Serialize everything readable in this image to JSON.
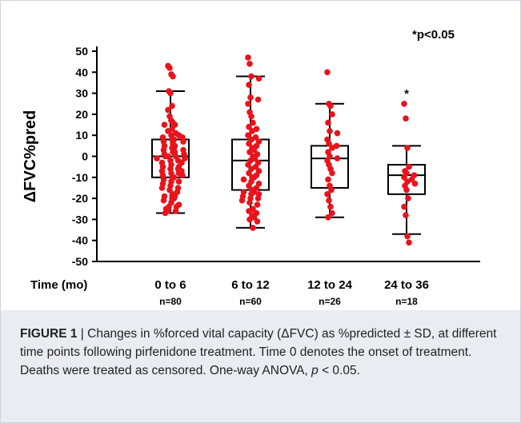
{
  "chart_data": {
    "type": "box",
    "ylabel": "ΔFVC%pred",
    "x_axis_title": "Time (mo)",
    "annotation": "*p<0.05",
    "ylim": [
      -50,
      50
    ],
    "yticks": [
      50,
      40,
      30,
      20,
      10,
      0,
      -10,
      -20,
      -30,
      -40,
      -50
    ],
    "point_color": "#e8141c",
    "groups": [
      {
        "label": "0 to 6",
        "n_label": "n=80",
        "significant": false,
        "whisker_high": 31,
        "q3": 8,
        "median": 0,
        "q1": -10,
        "whisker_low": -27,
        "points": [
          43,
          42,
          39,
          38,
          31,
          30,
          24,
          22,
          19,
          17,
          16,
          15,
          15,
          13,
          12,
          11,
          10,
          10,
          9,
          9,
          8,
          8,
          7,
          7,
          6,
          5,
          5,
          4,
          4,
          3,
          3,
          2,
          2,
          1,
          1,
          0,
          0,
          0,
          -1,
          -1,
          -2,
          -2,
          -3,
          -3,
          -4,
          -5,
          -5,
          -6,
          -6,
          -7,
          -7,
          -8,
          -8,
          -9,
          -9,
          -10,
          -10,
          -11,
          -12,
          -12,
          -13,
          -14,
          -15,
          -15,
          -16,
          -17,
          -18,
          -19,
          -19,
          -20,
          -20,
          -21,
          -22,
          -23,
          -24,
          -25,
          -26,
          -27,
          -26,
          -24
        ]
      },
      {
        "label": "6 to 12",
        "n_label": "n=60",
        "significant": false,
        "whisker_high": 38,
        "q3": 8,
        "median": -2,
        "q1": -16,
        "whisker_low": -34,
        "points": [
          47,
          44,
          38,
          37,
          34,
          28,
          27,
          25,
          21,
          19,
          16,
          14,
          13,
          12,
          10,
          9,
          8,
          7,
          6,
          5,
          4,
          3,
          2,
          1,
          0,
          -1,
          -2,
          -3,
          -4,
          -5,
          -6,
          -7,
          -8,
          -9,
          -10,
          -10,
          -11,
          -12,
          -13,
          -14,
          -15,
          -16,
          -17,
          -17,
          -18,
          -18,
          -19,
          -20,
          -20,
          -21,
          -22,
          -23,
          -25,
          -26,
          -27,
          -28,
          -30,
          -31,
          -34,
          -29
        ]
      },
      {
        "label": "12 to 24",
        "n_label": "n=26",
        "significant": false,
        "whisker_high": 25,
        "q3": 5,
        "median": -1,
        "q1": -15,
        "whisker_low": -29,
        "points": [
          40,
          25,
          24,
          20,
          16,
          12,
          11,
          8,
          6,
          5,
          4,
          2,
          0,
          -1,
          -2,
          -4,
          -6,
          -8,
          -11,
          -14,
          -16,
          -18,
          -21,
          -24,
          -27,
          -29
        ]
      },
      {
        "label": "24 to 36",
        "n_label": "n=18",
        "significant": true,
        "whisker_high": 5,
        "q3": -4,
        "median": -9,
        "q1": -18,
        "whisker_low": -37,
        "points": [
          25,
          18,
          4,
          -5,
          -7,
          -8,
          -9,
          -10,
          -11,
          -12,
          -13,
          -14,
          -16,
          -20,
          -24,
          -28,
          -38,
          -41
        ]
      }
    ]
  },
  "caption": {
    "label": "FIGURE 1",
    "separator": " | ",
    "text1": "Changes in %forced vital capacity (ΔFVC) as %predicted ± SD, at different time points following pirfenidone treatment. Time 0 denotes the onset of treatment. Deaths were treated as censored. One-way ANOVA, ",
    "p_symbol": "p",
    "text2": " < 0.05."
  }
}
